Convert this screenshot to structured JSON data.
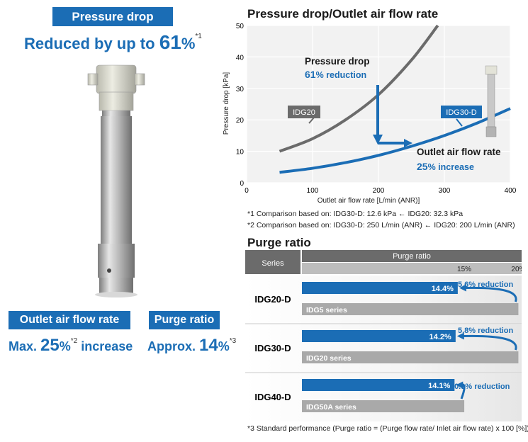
{
  "left": {
    "pressure_banner": "Pressure drop",
    "pressure_headline": "Reduced by up to",
    "pressure_value": "61",
    "pressure_unit": "%",
    "pressure_note": "*1",
    "flow_banner": "Outlet air flow rate",
    "flow_prefix": "Max.",
    "flow_value": "25",
    "flow_unit": "%",
    "flow_note": "*2",
    "flow_suffix": "increase",
    "purge_banner": "Purge ratio",
    "purge_prefix": "Approx.",
    "purge_value": "14",
    "purge_unit": "%",
    "purge_note": "*3"
  },
  "chart_data": [
    {
      "type": "line",
      "title": "Pressure drop/Outlet air flow rate",
      "xlabel": "Outlet air flow rate [L/min (ANR)]",
      "ylabel": "Pressure drop [kPa]",
      "xlim": [
        0,
        400
      ],
      "ylim": [
        0,
        50
      ],
      "xticks": [
        0,
        100,
        200,
        300,
        400
      ],
      "yticks": [
        0,
        10,
        20,
        30,
        40,
        50
      ],
      "series": [
        {
          "name": "IDG20",
          "color": "#6b6b6b",
          "x": [
            50,
            100,
            150,
            200,
            250,
            290
          ],
          "y": [
            10,
            14,
            20,
            28,
            39,
            50
          ]
        },
        {
          "name": "IDG30-D",
          "color": "#1b6db5",
          "x": [
            50,
            100,
            150,
            200,
            250,
            300,
            350,
            400
          ],
          "y": [
            3.3,
            4.6,
            6.4,
            8.7,
            11.6,
            15,
            19,
            23.6
          ]
        }
      ],
      "annotations": {
        "pressure_title": "Pressure drop",
        "pressure_value": "61",
        "pressure_rest": "% reduction",
        "flow_title": "Outlet air flow rate",
        "flow_value": "25",
        "flow_rest": "% increase"
      }
    },
    {
      "type": "bar",
      "title": "Purge ratio",
      "column_headers": {
        "series": "Series",
        "purge": "Purge ratio"
      },
      "tick_labels": [
        "15%",
        "20%"
      ],
      "xlim_percent": [
        0,
        20.3
      ],
      "groups": [
        {
          "series": "IDG20-D",
          "new_value": 14.4,
          "new_label": "14.4%",
          "old_name": "IDG5 series",
          "old_value": 20,
          "reduction": "5.6% reduction"
        },
        {
          "series": "IDG30-D",
          "new_value": 14.2,
          "new_label": "14.2%",
          "old_name": "IDG20 series",
          "old_value": 20,
          "reduction": "5.8% reduction"
        },
        {
          "series": "IDG40-D",
          "new_value": 14.1,
          "new_label": "14.1%",
          "old_name": "IDG50A series",
          "old_value": 15,
          "reduction": "0.9% reduction"
        }
      ]
    }
  ],
  "notes": {
    "n1": "*1  Comparison based on: IDG30-D: 12.6 kPa ← IDG20: 32.3 kPa",
    "n2": "*2  Comparison based on: IDG30-D: 250 L/min (ANR) ← IDG20: 200 L/min (ANR)",
    "n3": "*3  Standard performance (Purge ratio = (Purge flow rate/ Inlet air flow rate) x 100 [%])"
  },
  "colors": {
    "accent": "#1b6db5",
    "gray_bar": "#a9a9a9",
    "header_dark": "#6b6b6b",
    "header_light": "#bdbdbd"
  }
}
